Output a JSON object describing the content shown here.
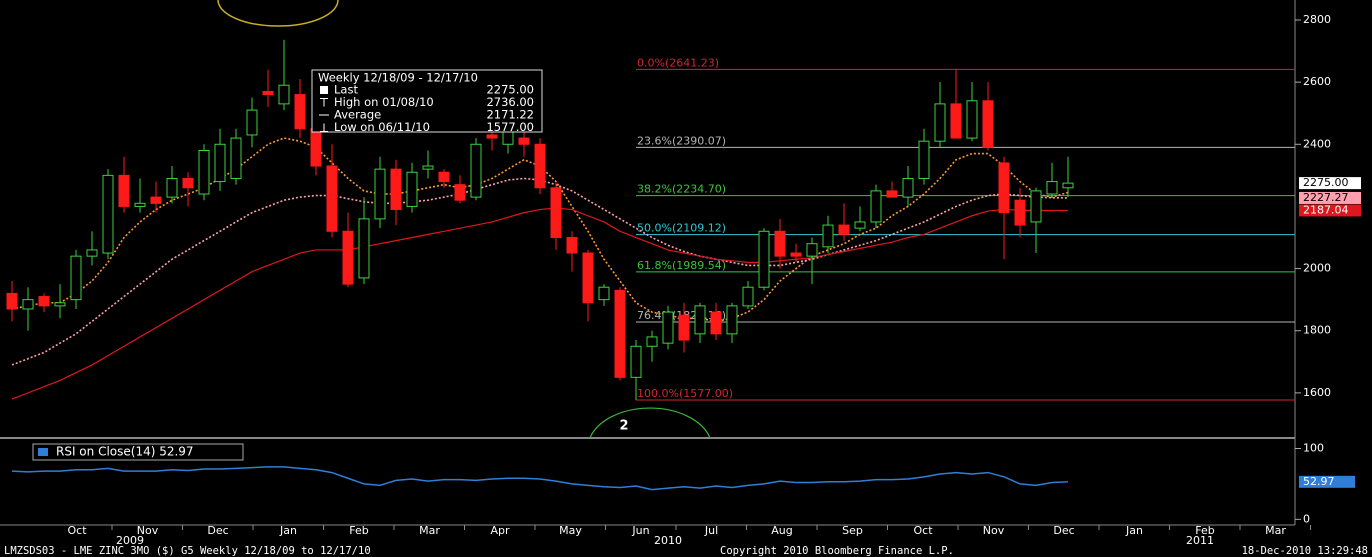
{
  "chart_data": [
    {
      "type": "candlestick",
      "ylim": [
        1458,
        2845
      ],
      "yticks": [
        1600,
        1800,
        2000,
        2400,
        2600,
        2800
      ],
      "up_color": "#3fd13f",
      "down_color": "#ff1a1a",
      "candles": [
        {
          "open": 1920,
          "high": 1960,
          "low": 1830,
          "close": 1870
        },
        {
          "open": 1870,
          "high": 1940,
          "low": 1800,
          "close": 1900
        },
        {
          "open": 1910,
          "high": 1920,
          "low": 1860,
          "close": 1880
        },
        {
          "open": 1880,
          "high": 1950,
          "low": 1840,
          "close": 1890
        },
        {
          "open": 1900,
          "high": 2060,
          "low": 1870,
          "close": 2040
        },
        {
          "open": 2040,
          "high": 2120,
          "low": 2010,
          "close": 2060
        },
        {
          "open": 2050,
          "high": 2320,
          "low": 2030,
          "close": 2300
        },
        {
          "open": 2300,
          "high": 2360,
          "low": 2180,
          "close": 2200
        },
        {
          "open": 2200,
          "high": 2290,
          "low": 2180,
          "close": 2210
        },
        {
          "open": 2230,
          "high": 2280,
          "low": 2180,
          "close": 2210
        },
        {
          "open": 2230,
          "high": 2330,
          "low": 2210,
          "close": 2290
        },
        {
          "open": 2290,
          "high": 2310,
          "low": 2200,
          "close": 2260
        },
        {
          "open": 2240,
          "high": 2400,
          "low": 2220,
          "close": 2380
        },
        {
          "open": 2280,
          "high": 2450,
          "low": 2250,
          "close": 2400
        },
        {
          "open": 2290,
          "high": 2450,
          "low": 2270,
          "close": 2420
        },
        {
          "open": 2430,
          "high": 2550,
          "low": 2390,
          "close": 2510
        },
        {
          "open": 2570,
          "high": 2640,
          "low": 2520,
          "close": 2560
        },
        {
          "open": 2530,
          "high": 2736,
          "low": 2510,
          "close": 2590
        },
        {
          "open": 2560,
          "high": 2610,
          "low": 2420,
          "close": 2450
        },
        {
          "open": 2450,
          "high": 2480,
          "low": 2300,
          "close": 2330
        },
        {
          "open": 2330,
          "high": 2400,
          "low": 2100,
          "close": 2120
        },
        {
          "open": 2120,
          "high": 2180,
          "low": 1940,
          "close": 1950
        },
        {
          "open": 1970,
          "high": 2230,
          "low": 1950,
          "close": 2160
        },
        {
          "open": 2160,
          "high": 2360,
          "low": 2130,
          "close": 2320
        },
        {
          "open": 2320,
          "high": 2350,
          "low": 2140,
          "close": 2190
        },
        {
          "open": 2200,
          "high": 2340,
          "low": 2180,
          "close": 2310
        },
        {
          "open": 2320,
          "high": 2380,
          "low": 2290,
          "close": 2330
        },
        {
          "open": 2310,
          "high": 2320,
          "low": 2260,
          "close": 2280
        },
        {
          "open": 2270,
          "high": 2300,
          "low": 2210,
          "close": 2220
        },
        {
          "open": 2230,
          "high": 2420,
          "low": 2220,
          "close": 2400
        },
        {
          "open": 2430,
          "high": 2500,
          "low": 2380,
          "close": 2420
        },
        {
          "open": 2400,
          "high": 2510,
          "low": 2370,
          "close": 2490
        },
        {
          "open": 2420,
          "high": 2440,
          "low": 2360,
          "close": 2400
        },
        {
          "open": 2400,
          "high": 2420,
          "low": 2240,
          "close": 2260
        },
        {
          "open": 2260,
          "high": 2280,
          "low": 2060,
          "close": 2100
        },
        {
          "open": 2100,
          "high": 2120,
          "low": 1990,
          "close": 2050
        },
        {
          "open": 2050,
          "high": 2060,
          "low": 1830,
          "close": 1890
        },
        {
          "open": 1900,
          "high": 1950,
          "low": 1880,
          "close": 1940
        },
        {
          "open": 1930,
          "high": 1940,
          "low": 1640,
          "close": 1650
        },
        {
          "open": 1650,
          "high": 1770,
          "low": 1577,
          "close": 1750
        },
        {
          "open": 1750,
          "high": 1800,
          "low": 1700,
          "close": 1780
        },
        {
          "open": 1760,
          "high": 1880,
          "low": 1740,
          "close": 1860
        },
        {
          "open": 1850,
          "high": 1890,
          "low": 1730,
          "close": 1770
        },
        {
          "open": 1790,
          "high": 1890,
          "low": 1760,
          "close": 1880
        },
        {
          "open": 1860,
          "high": 1890,
          "low": 1770,
          "close": 1790
        },
        {
          "open": 1790,
          "high": 1890,
          "low": 1760,
          "close": 1880
        },
        {
          "open": 1880,
          "high": 1960,
          "low": 1870,
          "close": 1940
        },
        {
          "open": 1940,
          "high": 2130,
          "low": 1930,
          "close": 2120
        },
        {
          "open": 2120,
          "high": 2160,
          "low": 2000,
          "close": 2040
        },
        {
          "open": 2050,
          "high": 2080,
          "low": 2020,
          "close": 2040
        },
        {
          "open": 2040,
          "high": 2100,
          "low": 1950,
          "close": 2080
        },
        {
          "open": 2070,
          "high": 2170,
          "low": 2050,
          "close": 2140
        },
        {
          "open": 2140,
          "high": 2210,
          "low": 2090,
          "close": 2110
        },
        {
          "open": 2130,
          "high": 2200,
          "low": 2120,
          "close": 2150
        },
        {
          "open": 2150,
          "high": 2270,
          "low": 2130,
          "close": 2250
        },
        {
          "open": 2250,
          "high": 2280,
          "low": 2230,
          "close": 2230
        },
        {
          "open": 2230,
          "high": 2330,
          "low": 2200,
          "close": 2290
        },
        {
          "open": 2290,
          "high": 2450,
          "low": 2270,
          "close": 2410
        },
        {
          "open": 2410,
          "high": 2600,
          "low": 2390,
          "close": 2530
        },
        {
          "open": 2530,
          "high": 2641,
          "low": 2420,
          "close": 2420
        },
        {
          "open": 2420,
          "high": 2600,
          "low": 2410,
          "close": 2540
        },
        {
          "open": 2540,
          "high": 2600,
          "low": 2380,
          "close": 2390
        },
        {
          "open": 2340,
          "high": 2360,
          "low": 2030,
          "close": 2180
        },
        {
          "open": 2220,
          "high": 2260,
          "low": 2100,
          "close": 2140
        },
        {
          "open": 2150,
          "high": 2260,
          "low": 2050,
          "close": 2250
        },
        {
          "open": 2240,
          "high": 2340,
          "low": 2230,
          "close": 2280
        },
        {
          "open": 2260,
          "high": 2360,
          "low": 2230,
          "close": 2275
        }
      ],
      "series": [
        {
          "color": "#ff9a2e",
          "dash": true,
          "values": [
            1870,
            1880,
            1890,
            1890,
            1920,
            1960,
            2020,
            2100,
            2150,
            2190,
            2220,
            2240,
            2260,
            2290,
            2320,
            2360,
            2400,
            2420,
            2410,
            2390,
            2340,
            2290,
            2250,
            2240,
            2240,
            2250,
            2260,
            2270,
            2260,
            2270,
            2290,
            2320,
            2350,
            2330,
            2280,
            2200,
            2120,
            2030,
            1960,
            1890,
            1860,
            1850,
            1840,
            1840,
            1830,
            1840,
            1860,
            1900,
            1960,
            2000,
            2040,
            2060,
            2080,
            2110,
            2130,
            2170,
            2200,
            2240,
            2290,
            2350,
            2370,
            2370,
            2330,
            2280,
            2240,
            2230,
            2245
          ]
        },
        {
          "color": "#ff9fb0",
          "dash": true,
          "values": [
            1690,
            1710,
            1730,
            1760,
            1790,
            1830,
            1870,
            1910,
            1950,
            1990,
            2030,
            2060,
            2090,
            2120,
            2150,
            2180,
            2200,
            2220,
            2230,
            2235,
            2235,
            2225,
            2215,
            2210,
            2210,
            2215,
            2220,
            2230,
            2240,
            2255,
            2270,
            2285,
            2290,
            2285,
            2270,
            2250,
            2220,
            2190,
            2160,
            2130,
            2100,
            2075,
            2055,
            2040,
            2030,
            2020,
            2010,
            2010,
            2010,
            2020,
            2030,
            2045,
            2060,
            2075,
            2090,
            2110,
            2130,
            2150,
            2175,
            2200,
            2220,
            2235,
            2240,
            2235,
            2230,
            2228,
            2227.27
          ]
        },
        {
          "color": "#e0161e",
          "dash": false,
          "values": [
            1580,
            1600,
            1620,
            1640,
            1665,
            1690,
            1720,
            1750,
            1780,
            1810,
            1840,
            1870,
            1900,
            1930,
            1960,
            1990,
            2010,
            2030,
            2050,
            2060,
            2060,
            2060,
            2070,
            2080,
            2090,
            2100,
            2110,
            2120,
            2130,
            2140,
            2150,
            2165,
            2180,
            2190,
            2195,
            2190,
            2170,
            2150,
            2120,
            2100,
            2080,
            2060,
            2050,
            2040,
            2030,
            2025,
            2020,
            2020,
            2025,
            2030,
            2035,
            2045,
            2055,
            2065,
            2075,
            2085,
            2100,
            2110,
            2130,
            2150,
            2170,
            2185,
            2190,
            2188,
            2187,
            2187,
            2187.04
          ]
        }
      ],
      "fibonacci": [
        {
          "label": "0.0%(2641.23)",
          "value": 2641.23,
          "color": "#d0262c"
        },
        {
          "label": "23.6%(2390.07)",
          "value": 2390.07,
          "color": "#b4b4b4"
        },
        {
          "label": "38.2%(2234.70)",
          "value": 2234.7,
          "color": "#3cc43c"
        },
        {
          "label": "50.0%(2109.12)",
          "value": 2109.12,
          "color": "#34c4d4"
        },
        {
          "label": "61.8%(1989.54)",
          "value": 1989.54,
          "color": "#3cc43c"
        },
        {
          "label": "76.4%(1828.16)",
          "value": 1828.16,
          "color": "#b4b4b4"
        },
        {
          "label": "100.0%(1577.00)",
          "value": 1577.0,
          "color": "#d0262c"
        }
      ],
      "price_tags": [
        {
          "value": 2275.0,
          "label": "2275.00",
          "color": "#ffffff",
          "text_color": "#000000"
        },
        {
          "value": 2227.27,
          "label": "2227.27",
          "color": "#ff9fb0",
          "text_color": "#000000"
        },
        {
          "value": 2187.04,
          "label": "2187.04",
          "color": "#e0161e",
          "text_color": "#ffffff"
        }
      ],
      "legend": {
        "title": "Weekly 12/18/09 - 12/17/10",
        "rows": [
          {
            "label": "Last",
            "value": "2275.00"
          },
          {
            "label": "High on 01/08/10",
            "value": "2736.00"
          },
          {
            "label": "Average",
            "value": "2171.22"
          },
          {
            "label": "Low on 06/11/10",
            "value": "1577.00"
          }
        ]
      },
      "annotation": "2",
      "months": [
        "Oct",
        "Nov",
        "Dec",
        "Jan",
        "Feb",
        "Mar",
        "Apr",
        "May",
        "Jun",
        "Jul",
        "Aug",
        "Sep",
        "Oct",
        "Nov",
        "Dec",
        "Jan",
        "Feb",
        "Mar"
      ],
      "years": [
        "2009",
        "2010",
        "2011"
      ]
    },
    {
      "type": "line",
      "title": "RSI on Close(14) 52.97",
      "ylim": [
        -8,
        112
      ],
      "yticks": [
        0,
        100
      ],
      "color": "#2f7fd8",
      "values": [
        68,
        67,
        68,
        68,
        70,
        70,
        72,
        68,
        68,
        68,
        70,
        69,
        71,
        71,
        72,
        73,
        74,
        74,
        72,
        70,
        66,
        58,
        50,
        48,
        55,
        57,
        54,
        56,
        56,
        55,
        57,
        58,
        58,
        57,
        54,
        50,
        48,
        46,
        45,
        47,
        42,
        44,
        46,
        44,
        47,
        45,
        48,
        50,
        54,
        52,
        52,
        53,
        53,
        54,
        56,
        56,
        57,
        60,
        64,
        66,
        64,
        66,
        60,
        50,
        48,
        52,
        52.97
      ],
      "tag": {
        "value": 52.97,
        "label": "52.97"
      }
    }
  ],
  "footer": {
    "left": "LMZSDS03 - LME ZINC  3MO ($)    G5  Weekly  12/18/09 to 12/17/10",
    "center": "Copyright 2010 Bloomberg Finance L.P.",
    "right": "18-Dec-2010 13:29:48"
  }
}
